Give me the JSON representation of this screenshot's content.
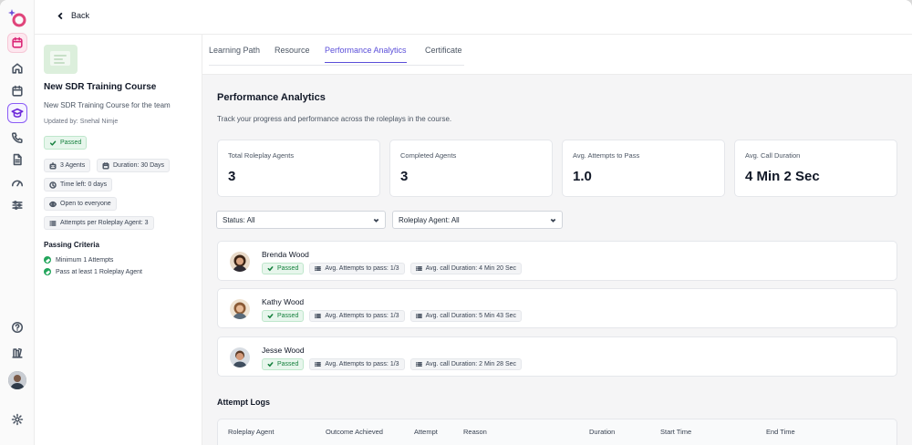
{
  "header": {
    "back_label": "Back"
  },
  "rail": {
    "icons": [
      "logo-icon",
      "calendar-badge-icon",
      "home-icon",
      "calendar-icon",
      "graduation-cap-icon",
      "phone-icon",
      "document-icon",
      "gauge-icon",
      "sliders-icon",
      "help-icon",
      "library-icon",
      "user-avatar",
      "settings-icon"
    ],
    "active": "graduation-cap-icon"
  },
  "course": {
    "title": "New SDR Training Course",
    "description": "New SDR Training Course for the team",
    "updated_by": "Updated by: Snehal Nimje",
    "status": "Passed",
    "agents": "3 Agents",
    "duration": "Duration: 30 Days",
    "time_left": "Time left: 0 days",
    "visibility": "Open to everyone",
    "attempts": "Attempts per Roleplay Agent: 3",
    "criteria_title": "Passing Criteria",
    "criteria": [
      "Minimum 1 Attempts",
      "Pass at least 1 Roleplay Agent"
    ]
  },
  "tabs": [
    {
      "label": "Learning Path",
      "active": false
    },
    {
      "label": "Resource",
      "active": false
    },
    {
      "label": "Performance Analytics",
      "active": true
    },
    {
      "label": "Certificate",
      "active": false
    }
  ],
  "analytics": {
    "title": "Performance Analytics",
    "subtitle": "Track your progress and performance across the roleplays in the course.",
    "stats": [
      {
        "label": "Total Roleplay Agents",
        "value": "3"
      },
      {
        "label": "Completed Agents",
        "value": "3"
      },
      {
        "label": "Avg. Attempts to Pass",
        "value": "1.0"
      },
      {
        "label": "Avg. Call Duration",
        "value": "4 Min 2 Sec"
      }
    ],
    "filters": {
      "status": "Status: All",
      "agent": "Roleplay Agent: All"
    },
    "agents": [
      {
        "name": "Brenda Wood",
        "status": "Passed",
        "attempts": "Avg. Attempts to pass: 1/3",
        "duration": "Avg. call Duration: 4 Min 20 Sec"
      },
      {
        "name": "Kathy Wood",
        "status": "Passed",
        "attempts": "Avg. Attempts to pass: 1/3",
        "duration": "Avg. call Duration: 5 Min 43 Sec"
      },
      {
        "name": "Jesse Wood",
        "status": "Passed",
        "attempts": "Avg. Attempts to pass: 1/3",
        "duration": "Avg. call Duration: 2 Min 28 Sec"
      }
    ]
  },
  "logs": {
    "title": "Attempt Logs",
    "columns": [
      "Roleplay Agent",
      "Outcome Achieved",
      "Attempt",
      "Reason",
      "Duration",
      "Start Time",
      "End Time"
    ]
  },
  "colors": {
    "accent": "#5b4fd9",
    "success": "#15803d",
    "success_bg": "#e7f6ec"
  }
}
